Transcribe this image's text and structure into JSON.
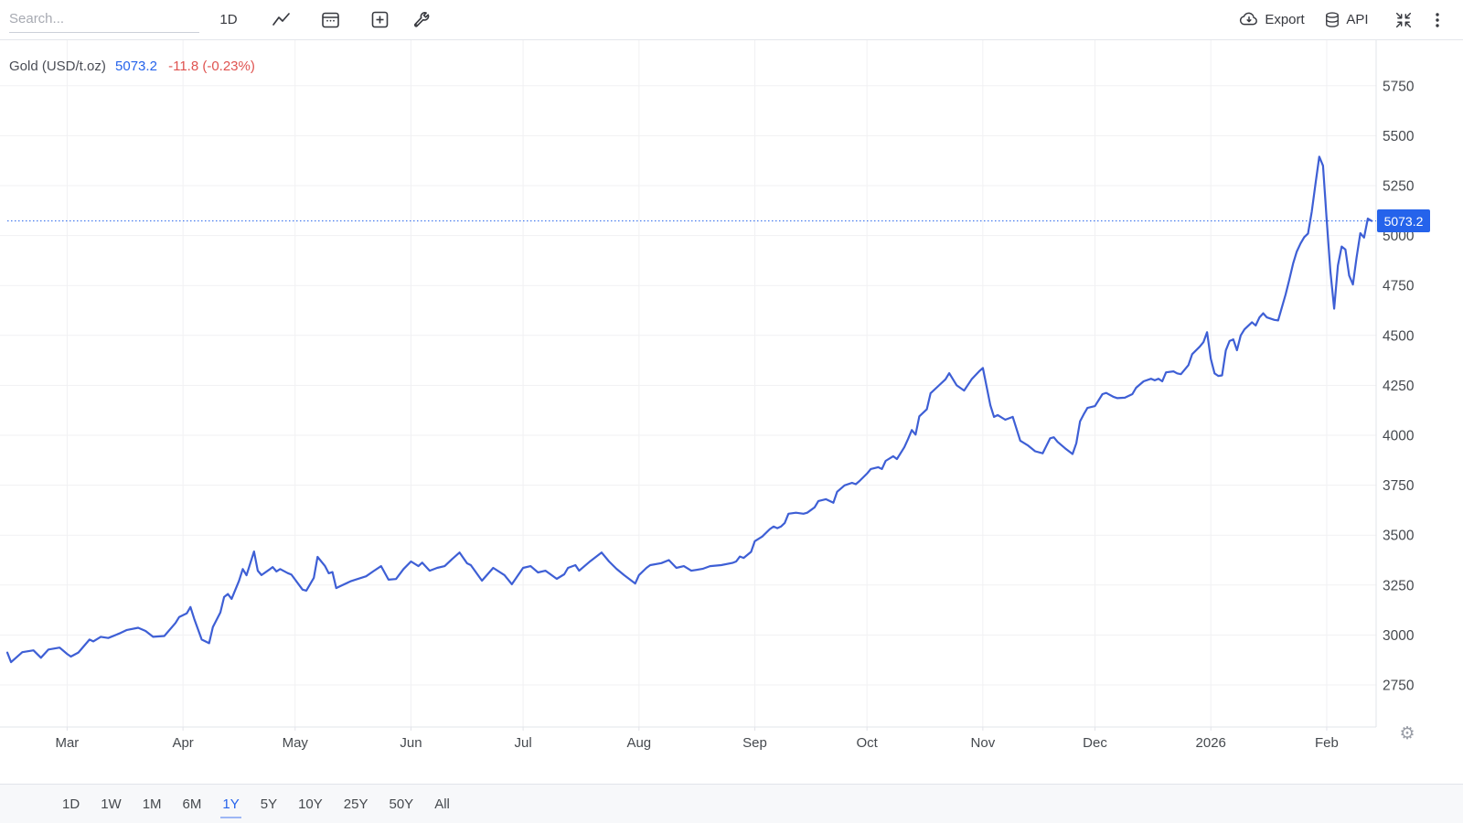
{
  "toolbar": {
    "search_placeholder": "Search...",
    "interval_label": "1D",
    "export_label": "Export",
    "api_label": "API"
  },
  "legend": {
    "symbol": "Gold (USD/t.oz)",
    "price": "5073.2",
    "change": "-11.8 (-0.23%)"
  },
  "price_axis_badge": "5073.2",
  "range_tabs": {
    "items": [
      "1D",
      "1W",
      "1M",
      "6M",
      "1Y",
      "5Y",
      "10Y",
      "25Y",
      "50Y",
      "All"
    ],
    "active": "1Y"
  },
  "colors": {
    "line": "#3e5fd5",
    "accent": "#2563eb",
    "down_red": "#df5350",
    "text": "#45494e",
    "grid": "#f1f1f3",
    "border": "#e2e4ea"
  },
  "chart_data": {
    "type": "line",
    "title": "Gold (USD/t.oz)",
    "current_price": 5073.2,
    "change_abs": -11.8,
    "change_pct": -0.23,
    "grid": true,
    "legend_position": "top-left",
    "y_ticks": [
      2750,
      3000,
      3250,
      3500,
      3750,
      4000,
      4250,
      4500,
      4750,
      5000,
      5250,
      5500,
      5750
    ],
    "ylim": [
      2630,
      5930
    ],
    "x_domain": [
      "2025-02-13",
      "2026-02-13"
    ],
    "x_ticks": [
      {
        "date": "2025-03-01",
        "label": "Mar"
      },
      {
        "date": "2025-04-01",
        "label": "Apr"
      },
      {
        "date": "2025-05-01",
        "label": "May"
      },
      {
        "date": "2025-06-01",
        "label": "Jun"
      },
      {
        "date": "2025-07-01",
        "label": "Jul"
      },
      {
        "date": "2025-08-01",
        "label": "Aug"
      },
      {
        "date": "2025-09-01",
        "label": "Sep"
      },
      {
        "date": "2025-10-01",
        "label": "Oct"
      },
      {
        "date": "2025-11-01",
        "label": "Nov"
      },
      {
        "date": "2025-12-01",
        "label": "Dec"
      },
      {
        "date": "2026-01-01",
        "label": "2026"
      },
      {
        "date": "2026-02-01",
        "label": "Feb"
      }
    ],
    "series": [
      {
        "name": "Gold (USD/t.oz)",
        "points": [
          [
            "2025-02-13",
            2912
          ],
          [
            "2025-02-14",
            2864
          ],
          [
            "2025-02-17",
            2914
          ],
          [
            "2025-02-20",
            2923
          ],
          [
            "2025-02-22",
            2886
          ],
          [
            "2025-02-24",
            2927
          ],
          [
            "2025-02-27",
            2937
          ],
          [
            "2025-03-01",
            2905
          ],
          [
            "2025-03-02",
            2892
          ],
          [
            "2025-03-04",
            2912
          ],
          [
            "2025-03-07",
            2977
          ],
          [
            "2025-03-08",
            2968
          ],
          [
            "2025-03-10",
            2991
          ],
          [
            "2025-03-12",
            2985
          ],
          [
            "2025-03-15",
            3008
          ],
          [
            "2025-03-17",
            3025
          ],
          [
            "2025-03-20",
            3036
          ],
          [
            "2025-03-22",
            3020
          ],
          [
            "2025-03-24",
            2991
          ],
          [
            "2025-03-27",
            2995
          ],
          [
            "2025-03-30",
            3060
          ],
          [
            "2025-03-31",
            3090
          ],
          [
            "2025-04-02",
            3108
          ],
          [
            "2025-04-03",
            3140
          ],
          [
            "2025-04-04",
            3081
          ],
          [
            "2025-04-06",
            2977
          ],
          [
            "2025-04-08",
            2959
          ],
          [
            "2025-04-09",
            3040
          ],
          [
            "2025-04-11",
            3113
          ],
          [
            "2025-04-12",
            3190
          ],
          [
            "2025-04-13",
            3205
          ],
          [
            "2025-04-14",
            3181
          ],
          [
            "2025-04-16",
            3271
          ],
          [
            "2025-04-17",
            3330
          ],
          [
            "2025-04-18",
            3299
          ],
          [
            "2025-04-20",
            3418
          ],
          [
            "2025-04-21",
            3322
          ],
          [
            "2025-04-22",
            3300
          ],
          [
            "2025-04-24",
            3326
          ],
          [
            "2025-04-25",
            3340
          ],
          [
            "2025-04-26",
            3318
          ],
          [
            "2025-04-27",
            3330
          ],
          [
            "2025-04-29",
            3310
          ],
          [
            "2025-04-30",
            3302
          ],
          [
            "2025-05-01",
            3277
          ],
          [
            "2025-05-03",
            3227
          ],
          [
            "2025-05-04",
            3222
          ],
          [
            "2025-05-06",
            3286
          ],
          [
            "2025-05-07",
            3391
          ],
          [
            "2025-05-09",
            3345
          ],
          [
            "2025-05-10",
            3309
          ],
          [
            "2025-05-11",
            3315
          ],
          [
            "2025-05-12",
            3235
          ],
          [
            "2025-05-13",
            3244
          ],
          [
            "2025-05-16",
            3270
          ],
          [
            "2025-05-20",
            3294
          ],
          [
            "2025-05-22",
            3320
          ],
          [
            "2025-05-24",
            3345
          ],
          [
            "2025-05-26",
            3277
          ],
          [
            "2025-05-28",
            3280
          ],
          [
            "2025-05-30",
            3330
          ],
          [
            "2025-06-01",
            3368
          ],
          [
            "2025-06-03",
            3345
          ],
          [
            "2025-06-04",
            3362
          ],
          [
            "2025-06-06",
            3322
          ],
          [
            "2025-06-08",
            3336
          ],
          [
            "2025-06-10",
            3345
          ],
          [
            "2025-06-12",
            3380
          ],
          [
            "2025-06-14",
            3413
          ],
          [
            "2025-06-16",
            3359
          ],
          [
            "2025-06-17",
            3350
          ],
          [
            "2025-06-20",
            3272
          ],
          [
            "2025-06-23",
            3336
          ],
          [
            "2025-06-26",
            3300
          ],
          [
            "2025-06-28",
            3254
          ],
          [
            "2025-07-01",
            3336
          ],
          [
            "2025-07-03",
            3345
          ],
          [
            "2025-07-05",
            3313
          ],
          [
            "2025-07-07",
            3322
          ],
          [
            "2025-07-10",
            3281
          ],
          [
            "2025-07-12",
            3304
          ],
          [
            "2025-07-13",
            3336
          ],
          [
            "2025-07-15",
            3350
          ],
          [
            "2025-07-16",
            3322
          ],
          [
            "2025-07-19",
            3370
          ],
          [
            "2025-07-22",
            3413
          ],
          [
            "2025-07-24",
            3368
          ],
          [
            "2025-07-26",
            3331
          ],
          [
            "2025-07-28",
            3300
          ],
          [
            "2025-07-30",
            3272
          ],
          [
            "2025-07-31",
            3258
          ],
          [
            "2025-08-01",
            3300
          ],
          [
            "2025-08-03",
            3336
          ],
          [
            "2025-08-04",
            3350
          ],
          [
            "2025-08-07",
            3360
          ],
          [
            "2025-08-09",
            3375
          ],
          [
            "2025-08-11",
            3336
          ],
          [
            "2025-08-13",
            3345
          ],
          [
            "2025-08-15",
            3322
          ],
          [
            "2025-08-18",
            3331
          ],
          [
            "2025-08-20",
            3345
          ],
          [
            "2025-08-23",
            3350
          ],
          [
            "2025-08-26",
            3361
          ],
          [
            "2025-08-27",
            3368
          ],
          [
            "2025-08-28",
            3393
          ],
          [
            "2025-08-29",
            3386
          ],
          [
            "2025-08-31",
            3416
          ],
          [
            "2025-09-01",
            3470
          ],
          [
            "2025-09-03",
            3493
          ],
          [
            "2025-09-05",
            3530
          ],
          [
            "2025-09-06",
            3543
          ],
          [
            "2025-09-07",
            3535
          ],
          [
            "2025-09-08",
            3543
          ],
          [
            "2025-09-09",
            3561
          ],
          [
            "2025-09-10",
            3607
          ],
          [
            "2025-09-12",
            3612
          ],
          [
            "2025-09-14",
            3607
          ],
          [
            "2025-09-15",
            3612
          ],
          [
            "2025-09-17",
            3639
          ],
          [
            "2025-09-18",
            3671
          ],
          [
            "2025-09-20",
            3680
          ],
          [
            "2025-09-22",
            3662
          ],
          [
            "2025-09-23",
            3717
          ],
          [
            "2025-09-25",
            3749
          ],
          [
            "2025-09-27",
            3762
          ],
          [
            "2025-09-28",
            3755
          ],
          [
            "2025-09-29",
            3771
          ],
          [
            "2025-10-01",
            3808
          ],
          [
            "2025-10-02",
            3831
          ],
          [
            "2025-10-04",
            3840
          ],
          [
            "2025-10-05",
            3831
          ],
          [
            "2025-10-06",
            3872
          ],
          [
            "2025-10-08",
            3895
          ],
          [
            "2025-10-09",
            3881
          ],
          [
            "2025-10-11",
            3940
          ],
          [
            "2025-10-12",
            3981
          ],
          [
            "2025-10-13",
            4026
          ],
          [
            "2025-10-14",
            4003
          ],
          [
            "2025-10-15",
            4095
          ],
          [
            "2025-10-17",
            4130
          ],
          [
            "2025-10-18",
            4210
          ],
          [
            "2025-10-20",
            4245
          ],
          [
            "2025-10-22",
            4280
          ],
          [
            "2025-10-23",
            4311
          ],
          [
            "2025-10-25",
            4250
          ],
          [
            "2025-10-27",
            4224
          ],
          [
            "2025-10-29",
            4280
          ],
          [
            "2025-10-31",
            4320
          ],
          [
            "2025-11-01",
            4337
          ],
          [
            "2025-11-03",
            4150
          ],
          [
            "2025-11-04",
            4092
          ],
          [
            "2025-11-05",
            4101
          ],
          [
            "2025-11-07",
            4078
          ],
          [
            "2025-11-09",
            4092
          ],
          [
            "2025-11-11",
            3973
          ],
          [
            "2025-11-13",
            3950
          ],
          [
            "2025-11-15",
            3920
          ],
          [
            "2025-11-17",
            3910
          ],
          [
            "2025-11-19",
            3985
          ],
          [
            "2025-11-20",
            3990
          ],
          [
            "2025-11-21",
            3967
          ],
          [
            "2025-11-23",
            3935
          ],
          [
            "2025-11-25",
            3906
          ],
          [
            "2025-11-26",
            3960
          ],
          [
            "2025-11-27",
            4070
          ],
          [
            "2025-11-28",
            4105
          ],
          [
            "2025-11-29",
            4137
          ],
          [
            "2025-12-01",
            4146
          ],
          [
            "2025-12-03",
            4206
          ],
          [
            "2025-12-04",
            4212
          ],
          [
            "2025-12-06",
            4192
          ],
          [
            "2025-12-07",
            4186
          ],
          [
            "2025-12-09",
            4188
          ],
          [
            "2025-12-11",
            4206
          ],
          [
            "2025-12-12",
            4238
          ],
          [
            "2025-12-14",
            4270
          ],
          [
            "2025-12-16",
            4283
          ],
          [
            "2025-12-17",
            4275
          ],
          [
            "2025-12-18",
            4283
          ],
          [
            "2025-12-19",
            4270
          ],
          [
            "2025-12-20",
            4315
          ],
          [
            "2025-12-22",
            4320
          ],
          [
            "2025-12-23",
            4310
          ],
          [
            "2025-12-24",
            4306
          ],
          [
            "2025-12-26",
            4351
          ],
          [
            "2025-12-27",
            4406
          ],
          [
            "2025-12-29",
            4443
          ],
          [
            "2025-12-30",
            4466
          ],
          [
            "2025-12-31",
            4516
          ],
          [
            "2026-01-01",
            4383
          ],
          [
            "2026-01-02",
            4310
          ],
          [
            "2026-01-03",
            4297
          ],
          [
            "2026-01-04",
            4300
          ],
          [
            "2026-01-05",
            4425
          ],
          [
            "2026-01-06",
            4472
          ],
          [
            "2026-01-07",
            4480
          ],
          [
            "2026-01-08",
            4426
          ],
          [
            "2026-01-09",
            4500
          ],
          [
            "2026-01-10",
            4530
          ],
          [
            "2026-01-12",
            4566
          ],
          [
            "2026-01-13",
            4550
          ],
          [
            "2026-01-14",
            4590
          ],
          [
            "2026-01-15",
            4611
          ],
          [
            "2026-01-16",
            4590
          ],
          [
            "2026-01-18",
            4578
          ],
          [
            "2026-01-19",
            4575
          ],
          [
            "2026-01-20",
            4640
          ],
          [
            "2026-01-21",
            4705
          ],
          [
            "2026-01-22",
            4780
          ],
          [
            "2026-01-23",
            4860
          ],
          [
            "2026-01-24",
            4920
          ],
          [
            "2026-01-25",
            4960
          ],
          [
            "2026-01-26",
            4992
          ],
          [
            "2026-01-27",
            5010
          ],
          [
            "2026-01-28",
            5120
          ],
          [
            "2026-01-29",
            5260
          ],
          [
            "2026-01-30",
            5395
          ],
          [
            "2026-01-31",
            5350
          ],
          [
            "2026-02-01",
            5080
          ],
          [
            "2026-02-02",
            4820
          ],
          [
            "2026-02-03",
            4634
          ],
          [
            "2026-02-04",
            4850
          ],
          [
            "2026-02-05",
            4945
          ],
          [
            "2026-02-06",
            4930
          ],
          [
            "2026-02-07",
            4800
          ],
          [
            "2026-02-08",
            4755
          ],
          [
            "2026-02-09",
            4890
          ],
          [
            "2026-02-10",
            5012
          ],
          [
            "2026-02-11",
            4990
          ],
          [
            "2026-02-12",
            5085
          ],
          [
            "2026-02-13",
            5073.2
          ]
        ]
      }
    ]
  }
}
